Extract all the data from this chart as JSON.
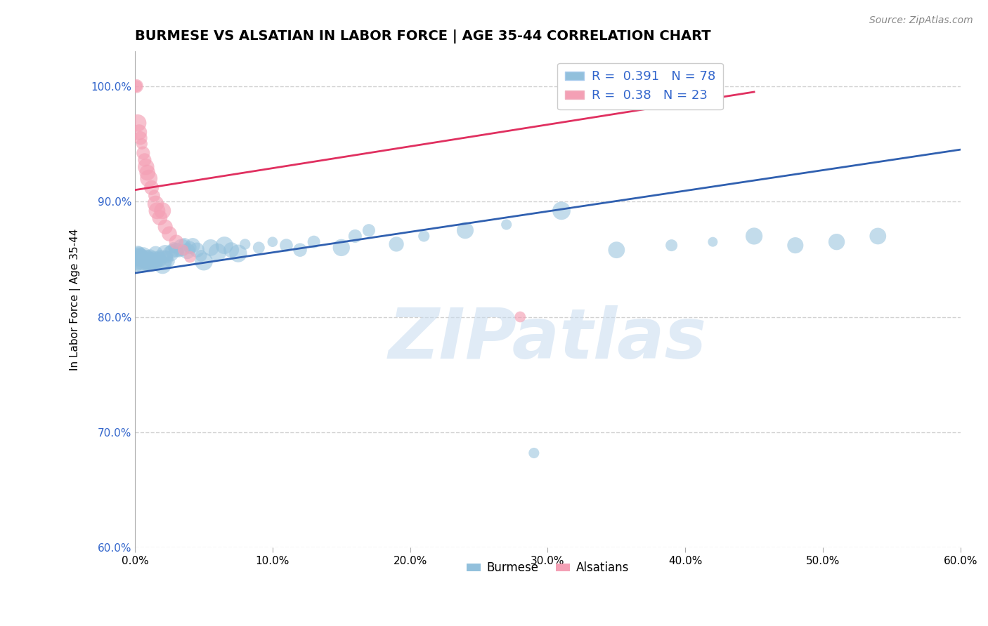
{
  "title": "BURMESE VS ALSATIAN IN LABOR FORCE | AGE 35-44 CORRELATION CHART",
  "source_text": "Source: ZipAtlas.com",
  "ylabel": "In Labor Force | Age 35-44",
  "xlim": [
    0.0,
    0.6
  ],
  "ylim": [
    0.6,
    1.03
  ],
  "xticks": [
    0.0,
    0.1,
    0.2,
    0.3,
    0.4,
    0.5,
    0.6
  ],
  "xtick_labels": [
    "0.0%",
    "10.0%",
    "20.0%",
    "30.0%",
    "40.0%",
    "50.0%",
    "60.0%"
  ],
  "yticks": [
    0.6,
    0.7,
    0.8,
    0.9,
    1.0
  ],
  "ytick_labels": [
    "60.0%",
    "70.0%",
    "80.0%",
    "90.0%",
    "100.0%"
  ],
  "burmese_R": 0.391,
  "burmese_N": 78,
  "alsatian_R": 0.38,
  "alsatian_N": 23,
  "burmese_color": "#92C0DC",
  "alsatian_color": "#F4A0B5",
  "burmese_line_color": "#3060B0",
  "alsatian_line_color": "#E03060",
  "watermark": "ZIPatlas",
  "background_color": "#ffffff",
  "grid_color": "#cccccc",
  "burmese_x": [
    0.001,
    0.001,
    0.002,
    0.002,
    0.003,
    0.003,
    0.004,
    0.004,
    0.005,
    0.005,
    0.005,
    0.006,
    0.006,
    0.007,
    0.007,
    0.008,
    0.008,
    0.009,
    0.009,
    0.01,
    0.01,
    0.011,
    0.011,
    0.012,
    0.012,
    0.013,
    0.014,
    0.015,
    0.015,
    0.016,
    0.017,
    0.018,
    0.019,
    0.02,
    0.021,
    0.022,
    0.023,
    0.025,
    0.026,
    0.027,
    0.028,
    0.03,
    0.032,
    0.034,
    0.036,
    0.038,
    0.04,
    0.042,
    0.045,
    0.048,
    0.05,
    0.055,
    0.06,
    0.065,
    0.07,
    0.075,
    0.08,
    0.09,
    0.1,
    0.11,
    0.12,
    0.13,
    0.15,
    0.16,
    0.17,
    0.19,
    0.21,
    0.24,
    0.27,
    0.31,
    0.35,
    0.39,
    0.42,
    0.45,
    0.48,
    0.51,
    0.54,
    0.29
  ],
  "burmese_y": [
    0.845,
    0.852,
    0.848,
    0.855,
    0.85,
    0.856,
    0.848,
    0.852,
    0.845,
    0.85,
    0.855,
    0.848,
    0.853,
    0.847,
    0.852,
    0.845,
    0.85,
    0.847,
    0.852,
    0.846,
    0.85,
    0.848,
    0.853,
    0.845,
    0.85,
    0.848,
    0.852,
    0.855,
    0.848,
    0.845,
    0.85,
    0.853,
    0.848,
    0.845,
    0.85,
    0.855,
    0.852,
    0.848,
    0.855,
    0.857,
    0.86,
    0.858,
    0.856,
    0.86,
    0.863,
    0.857,
    0.86,
    0.862,
    0.858,
    0.853,
    0.848,
    0.86,
    0.856,
    0.862,
    0.858,
    0.855,
    0.863,
    0.86,
    0.865,
    0.862,
    0.858,
    0.865,
    0.86,
    0.87,
    0.875,
    0.863,
    0.87,
    0.875,
    0.88,
    0.892,
    0.858,
    0.862,
    0.865,
    0.87,
    0.862,
    0.865,
    0.87,
    0.682
  ],
  "alsatian_x": [
    0.001,
    0.001,
    0.002,
    0.003,
    0.004,
    0.005,
    0.006,
    0.007,
    0.008,
    0.009,
    0.01,
    0.012,
    0.014,
    0.015,
    0.016,
    0.018,
    0.02,
    0.022,
    0.025,
    0.03,
    0.035,
    0.04,
    0.28
  ],
  "alsatian_y": [
    1.0,
    1.0,
    0.968,
    0.96,
    0.955,
    0.95,
    0.942,
    0.936,
    0.93,
    0.925,
    0.92,
    0.912,
    0.905,
    0.898,
    0.892,
    0.886,
    0.892,
    0.878,
    0.872,
    0.865,
    0.858,
    0.852,
    0.8
  ],
  "burmese_trendline_x": [
    0.0,
    0.6
  ],
  "burmese_trendline_y": [
    0.838,
    0.945
  ],
  "alsatian_trendline_x": [
    0.0,
    0.45
  ],
  "alsatian_trendline_y": [
    0.91,
    0.995
  ],
  "title_fontsize": 14,
  "axis_label_fontsize": 11,
  "tick_fontsize": 11,
  "legend_fontsize": 13
}
